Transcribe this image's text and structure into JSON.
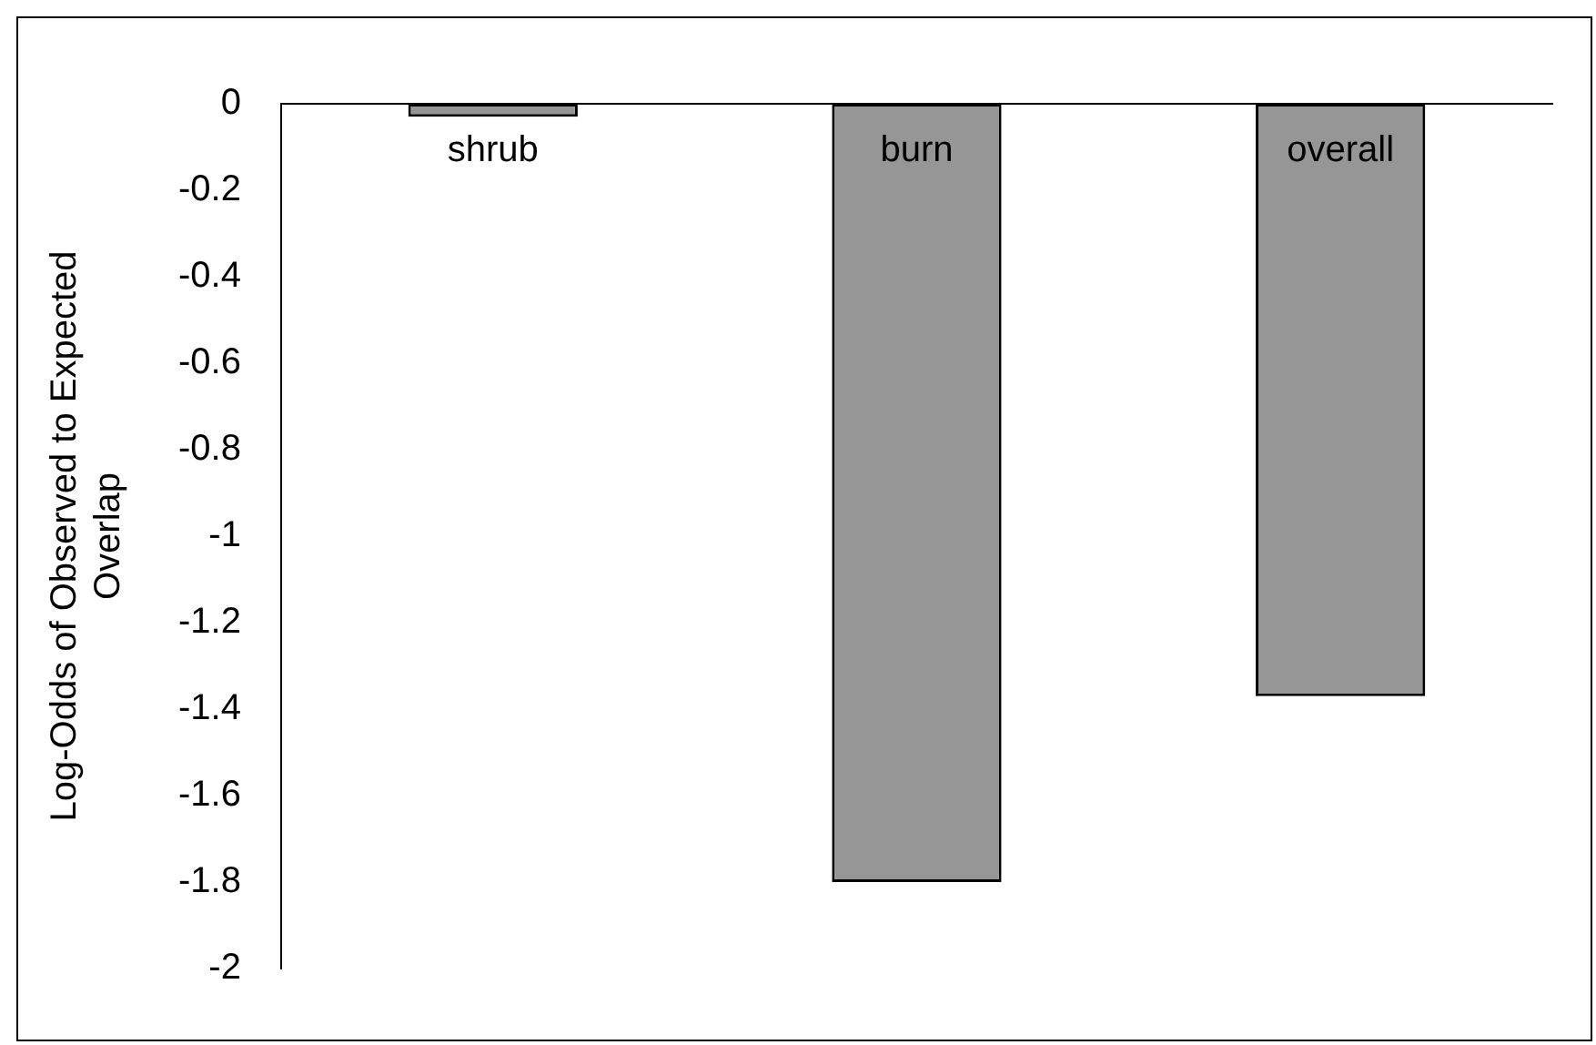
{
  "chart_data": {
    "type": "bar",
    "ylabel": "Log-Odds of Observed to Expected Overlap",
    "categories": [
      "shrub",
      "burn",
      "overall"
    ],
    "values": [
      -0.03,
      -1.8,
      -1.37
    ],
    "color": "#969696",
    "ylim": [
      -2,
      0
    ],
    "yticks": [
      0,
      -0.2,
      -0.4,
      -0.6,
      -0.8,
      -1,
      -1.2,
      -1.4,
      -1.6,
      -1.8,
      -2
    ],
    "grid": false,
    "legend": false
  }
}
